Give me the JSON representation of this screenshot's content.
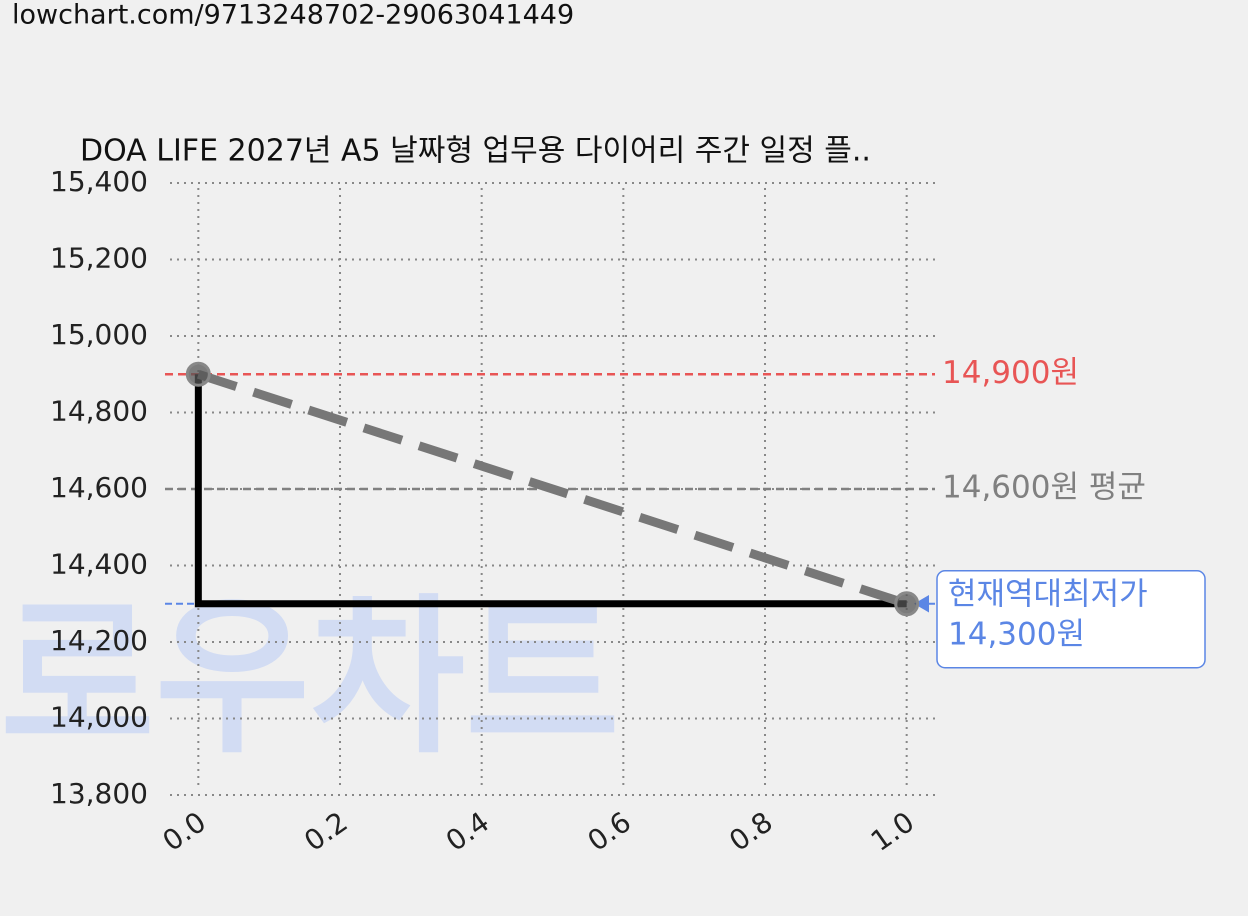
{
  "url": "lowchart.com/9713248702-29063041449",
  "watermark": "로우차트",
  "chart_data": {
    "type": "line",
    "title": "DOA LIFE 2027년 A5 날짜형 업무용 다이어리 주간 일정 플..",
    "x": [
      0,
      1
    ],
    "series": [
      {
        "values": [
          14900,
          14300
        ],
        "color": "#000000",
        "style": "step"
      },
      {
        "values": [
          14900,
          14300
        ],
        "color": "#777777",
        "style": "dashed"
      }
    ],
    "xlim": [
      -0.04,
      1.04
    ],
    "ylim": [
      13800,
      15400
    ],
    "xticks": [
      {
        "value": 0,
        "label": "0.0"
      },
      0.2,
      0.4,
      0.6,
      0.8,
      {
        "value": 1,
        "label": "1.0"
      }
    ],
    "yticks": [
      {
        "value": 13800,
        "label": "13,800"
      },
      {
        "value": 14000,
        "label": "14,000"
      },
      {
        "value": 14200,
        "label": "14,200"
      },
      {
        "value": 14400,
        "label": "14,400"
      },
      {
        "value": 14600,
        "label": "14,600"
      },
      {
        "value": 14800,
        "label": "14,800"
      },
      {
        "value": 15000,
        "label": "15,000"
      },
      {
        "value": 15200,
        "label": "15,200"
      },
      {
        "value": 15400,
        "label": "15,400"
      }
    ],
    "grid": true,
    "annotations": [
      {
        "kind": "max",
        "value": 14900,
        "label": "14,900원",
        "color": "#e85555"
      },
      {
        "kind": "average",
        "value": 14600,
        "label": "14,600원 평균",
        "color": "#808080"
      },
      {
        "kind": "current-min",
        "value": 14300,
        "label": [
          "현재역대최저가",
          "14,300원"
        ],
        "color": "#5b86e5"
      }
    ]
  }
}
